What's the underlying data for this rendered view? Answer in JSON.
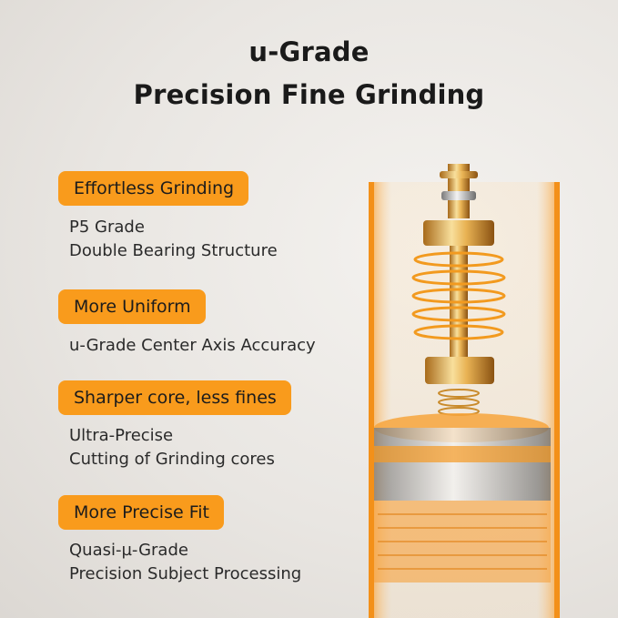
{
  "title": {
    "line1": "u-Grade",
    "line2": "Precision Fine Grinding"
  },
  "features": [
    {
      "badge": "Effortless Grinding",
      "lines": [
        "P5 Grade",
        "Double Bearing Structure"
      ]
    },
    {
      "badge": "More Uniform",
      "lines": [
        "u-Grade Center Axis Accuracy"
      ]
    },
    {
      "badge": "Sharper core, less fines",
      "lines": [
        "Ultra-Precise",
        "Cutting of Grinding cores"
      ]
    },
    {
      "badge": "More Precise Fit",
      "lines": [
        "Quasi-µ-Grade",
        "Precision Subject Processing"
      ]
    }
  ],
  "colors": {
    "accent": "#f99b1c",
    "gold": "#d9a441",
    "background": "#e9e6e2"
  },
  "image": {
    "subject": "grinder-burr-spindle-assembly"
  }
}
